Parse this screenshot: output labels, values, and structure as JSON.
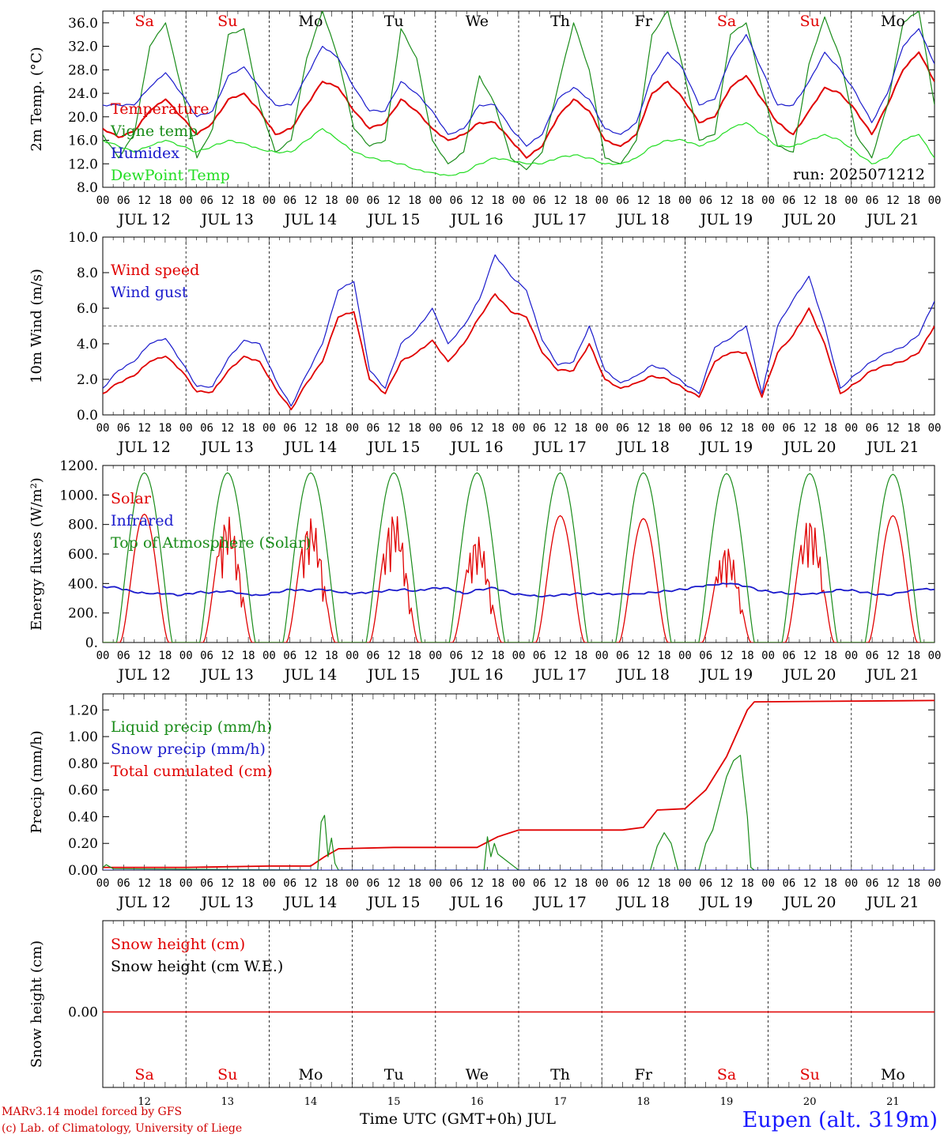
{
  "chart_data": [
    {
      "type": "line",
      "ylabel": "2m Temp. (°C)",
      "ylim": [
        8,
        38
      ],
      "yticks": [
        "8.0",
        "12.0",
        "16.0",
        "20.0",
        "24.0",
        "28.0",
        "32.0",
        "36.0"
      ],
      "annotation": "run: 2025071212",
      "day_labels": [
        "Sa",
        "Su",
        "Mo",
        "Tu",
        "We",
        "Th",
        "Fr",
        "Sa",
        "Su",
        "Mo"
      ],
      "legend": [
        "Temperature",
        "Vigne temp",
        "Humidex",
        "DewPoint Temp"
      ],
      "series": [
        {
          "name": "Temperature",
          "color": "#e00000",
          "width": 2,
          "y": [
            18,
            16.5,
            17.5,
            21,
            23,
            20,
            17,
            19,
            23,
            24,
            21,
            17,
            18,
            22,
            26,
            25,
            21,
            18,
            19,
            23,
            21,
            18,
            16,
            17,
            19,
            19,
            16,
            13,
            15,
            20,
            23,
            21,
            16,
            15,
            17,
            24,
            26,
            23,
            19,
            20,
            25,
            27,
            23,
            19,
            17,
            21,
            25,
            24,
            21,
            17,
            22,
            28,
            31,
            26
          ]
        },
        {
          "name": "Vigne temp",
          "color": "#1a8c1a",
          "width": 1.2,
          "y": [
            17,
            13,
            17,
            32,
            36,
            25,
            13,
            18,
            34,
            35,
            22,
            14,
            16,
            30,
            38,
            30,
            18,
            15,
            16,
            35,
            30,
            16,
            12,
            14,
            27,
            22,
            13,
            11,
            14,
            25,
            36,
            28,
            13,
            12,
            16,
            34,
            38,
            28,
            16,
            17,
            34,
            36,
            25,
            15,
            14,
            29,
            37,
            30,
            17,
            13,
            22,
            36,
            38,
            22
          ]
        },
        {
          "name": "Humidex",
          "color": "#1a1acc",
          "width": 1.2,
          "y": [
            22,
            22,
            22,
            25,
            27.5,
            24,
            20,
            21,
            27,
            28.5,
            25,
            22,
            22,
            27,
            32,
            30,
            25,
            21,
            21,
            26,
            24,
            21,
            17,
            18,
            22,
            22,
            18,
            15,
            17,
            23,
            25,
            23,
            18,
            17,
            19,
            27,
            31,
            28,
            22,
            23,
            30,
            34,
            28,
            22,
            22,
            26,
            31,
            28,
            24,
            19,
            24,
            32,
            35,
            29
          ]
        },
        {
          "name": "DewPoint Temp",
          "color": "#22dd22",
          "width": 1.2,
          "y": [
            16,
            15,
            14,
            15,
            16,
            15,
            14,
            15,
            16,
            15.5,
            14.5,
            14,
            14,
            16,
            18,
            16,
            14,
            13,
            12.5,
            12,
            11,
            10.5,
            10,
            10.5,
            12,
            13,
            12.5,
            12,
            12,
            13,
            13.5,
            13,
            12,
            12,
            13,
            15,
            16,
            16,
            15,
            16,
            18,
            19,
            17,
            15,
            15,
            16,
            17,
            16,
            14,
            12,
            13,
            16,
            17,
            13
          ]
        }
      ]
    },
    {
      "type": "line",
      "ylabel": "10m Wind (m/s)",
      "ylim": [
        0,
        10
      ],
      "yticks": [
        "0.0",
        "2.0",
        "4.0",
        "6.0",
        "8.0",
        "10.0"
      ],
      "reference_line": 5,
      "legend": [
        "Wind speed",
        "Wind gust"
      ],
      "series": [
        {
          "name": "Wind speed",
          "color": "#e00000",
          "width": 1.8,
          "y": [
            1.2,
            1.8,
            2.2,
            3,
            3.3,
            2.5,
            1.3,
            1.3,
            2.5,
            3.3,
            3,
            1.5,
            0.3,
            1.8,
            3,
            5.5,
            5.8,
            2,
            1.2,
            3,
            3.5,
            4.2,
            3,
            4,
            5.5,
            6.8,
            5.8,
            5.5,
            3.5,
            2.5,
            2.5,
            4,
            2,
            1.5,
            1.8,
            2.2,
            2,
            1.5,
            1,
            3,
            3.5,
            3.5,
            1,
            3.5,
            4.5,
            6,
            4,
            1.2,
            1.8,
            2.5,
            2.8,
            3,
            3.5,
            5
          ]
        },
        {
          "name": "Wind gust",
          "color": "#1a1acc",
          "width": 1.2,
          "y": [
            1.5,
            2.5,
            3,
            4,
            4.3,
            3,
            1.6,
            1.6,
            3.2,
            4.2,
            4,
            2,
            0.5,
            2.3,
            4,
            7,
            7.5,
            2.5,
            1.5,
            4,
            4.8,
            6,
            4,
            5,
            6.5,
            9,
            7.8,
            7,
            4.2,
            2.8,
            3,
            5,
            2.5,
            1.8,
            2.2,
            2.8,
            2.5,
            1.8,
            1.2,
            3.8,
            4.3,
            5,
            1.2,
            5,
            6.5,
            7.8,
            5,
            1.5,
            2.3,
            3,
            3.5,
            3.8,
            4.5,
            6.4
          ]
        }
      ]
    },
    {
      "type": "line",
      "ylabel": "Energy fluxes (W/m²)",
      "ylim": [
        0,
        1200
      ],
      "yticks": [
        "0.",
        "200.",
        "400.",
        "600.",
        "800.",
        "1000.",
        "1200."
      ],
      "legend": [
        "Solar",
        "Infrared",
        "Top of Atmosphere (Solar)"
      ],
      "series": [
        {
          "name": "Solar",
          "color": "#e00000",
          "width": 1.3,
          "day_peaks": [
            870,
            860,
            850,
            890,
            730,
            860,
            840,
            660,
            860,
            860
          ],
          "noisy_days": [
            1,
            2,
            3,
            4,
            7,
            8
          ]
        },
        {
          "name": "Infrared",
          "color": "#1a1acc",
          "width": 1.8,
          "y": [
            380,
            370,
            340,
            330,
            330,
            320,
            340,
            340,
            350,
            330,
            320,
            340,
            360,
            350,
            360,
            340,
            330,
            340,
            350,
            360,
            350,
            370,
            370,
            330,
            360,
            370,
            330,
            320,
            310,
            320,
            330,
            330,
            330,
            330,
            330,
            340,
            350,
            360,
            380,
            390,
            400,
            380,
            350,
            340,
            330,
            330,
            340,
            360,
            350,
            330,
            320,
            340,
            360,
            360
          ]
        },
        {
          "name": "Top of Atmosphere (Solar)",
          "color": "#1a8c1a",
          "width": 1.2,
          "day_peaks": [
            1150,
            1150,
            1150,
            1150,
            1150,
            1150,
            1150,
            1145,
            1145,
            1140
          ]
        }
      ]
    },
    {
      "type": "line",
      "ylabel": "Precip (mm/h)",
      "ylim": [
        0,
        1.32
      ],
      "yticks": [
        "0.00",
        "0.20",
        "0.40",
        "0.60",
        "0.80",
        "1.00",
        "1.20"
      ],
      "legend": [
        "Liquid precip (mm/h)",
        "Snow precip (mm/h)",
        "Total cumulated (cm)"
      ],
      "series": [
        {
          "name": "Total cumulated (cm)",
          "color": "#e00000",
          "width": 1.8,
          "points": [
            [
              0,
              0.02
            ],
            [
              24,
              0.02
            ],
            [
              48,
              0.03
            ],
            [
              60,
              0.03
            ],
            [
              64,
              0.1
            ],
            [
              68,
              0.16
            ],
            [
              84,
              0.17
            ],
            [
              108,
              0.17
            ],
            [
              114,
              0.25
            ],
            [
              120,
              0.3
            ],
            [
              150,
              0.3
            ],
            [
              156,
              0.32
            ],
            [
              160,
              0.45
            ],
            [
              168,
              0.46
            ],
            [
              174,
              0.6
            ],
            [
              180,
              0.85
            ],
            [
              186,
              1.2
            ],
            [
              188,
              1.26
            ],
            [
              240,
              1.27
            ]
          ]
        },
        {
          "name": "Liquid precip (mm/h)",
          "color": "#1a8c1a",
          "width": 1.2,
          "points": [
            [
              0,
              0.02
            ],
            [
              1,
              0.04
            ],
            [
              3,
              0.01
            ],
            [
              62,
              0
            ],
            [
              63,
              0.36
            ],
            [
              64,
              0.41
            ],
            [
              65,
              0.1
            ],
            [
              66,
              0.24
            ],
            [
              67,
              0.05
            ],
            [
              68,
              0
            ],
            [
              110,
              0
            ],
            [
              111,
              0.25
            ],
            [
              112,
              0.1
            ],
            [
              113,
              0.2
            ],
            [
              114,
              0.12
            ],
            [
              116,
              0.08
            ],
            [
              118,
              0.04
            ],
            [
              120,
              0
            ],
            [
              158,
              0
            ],
            [
              160,
              0.18
            ],
            [
              162,
              0.28
            ],
            [
              164,
              0.2
            ],
            [
              166,
              0
            ],
            [
              172,
              0
            ],
            [
              174,
              0.2
            ],
            [
              176,
              0.3
            ],
            [
              178,
              0.5
            ],
            [
              180,
              0.7
            ],
            [
              182,
              0.82
            ],
            [
              184,
              0.86
            ],
            [
              186,
              0.4
            ],
            [
              187,
              0.02
            ],
            [
              188,
              0
            ]
          ]
        },
        {
          "name": "Snow precip (mm/h)",
          "color": "#1a1acc",
          "width": 1,
          "points": [
            [
              0,
              0
            ],
            [
              240,
              0
            ]
          ]
        }
      ]
    },
    {
      "type": "line",
      "ylabel": "Snow height (cm)",
      "yticks": [
        "0.00"
      ],
      "legend": [
        "Snow height (cm)",
        "Snow height (cm W.E.)"
      ],
      "bottom_day_names": [
        "Sa",
        "Su",
        "Mo",
        "Tu",
        "We",
        "Th",
        "Fr",
        "Sa",
        "Su",
        "Mo"
      ],
      "bottom_day_numbers": [
        "12",
        "13",
        "14",
        "15",
        "16",
        "17",
        "18",
        "19",
        "20",
        "21"
      ],
      "series": [
        {
          "name": "Snow height (cm)",
          "color": "#e00000",
          "width": 1.5,
          "points": [
            [
              0,
              0
            ],
            [
              240,
              0
            ]
          ]
        }
      ]
    }
  ],
  "x_axis": {
    "hour_labels": [
      "00",
      "06",
      "12",
      "18"
    ],
    "date_labels": [
      "JUL 12",
      "JUL 13",
      "JUL 14",
      "JUL 15",
      "JUL 16",
      "JUL 17",
      "JUL 18",
      "JUL 19",
      "JUL 20",
      "JUL 21"
    ],
    "final_label": "00",
    "title": "Time UTC (GMT+0h) JUL"
  },
  "weekend_color": "#e00000",
  "weekday_color": "#000000",
  "weekend_day_indices": [
    0,
    1,
    7,
    8
  ],
  "footer": {
    "model_line": "MARv3.14 model forced by GFS",
    "credit_line": "(c) Lab. of Climatology, University of Liege",
    "location": "Eupen (alt. 319m)"
  }
}
